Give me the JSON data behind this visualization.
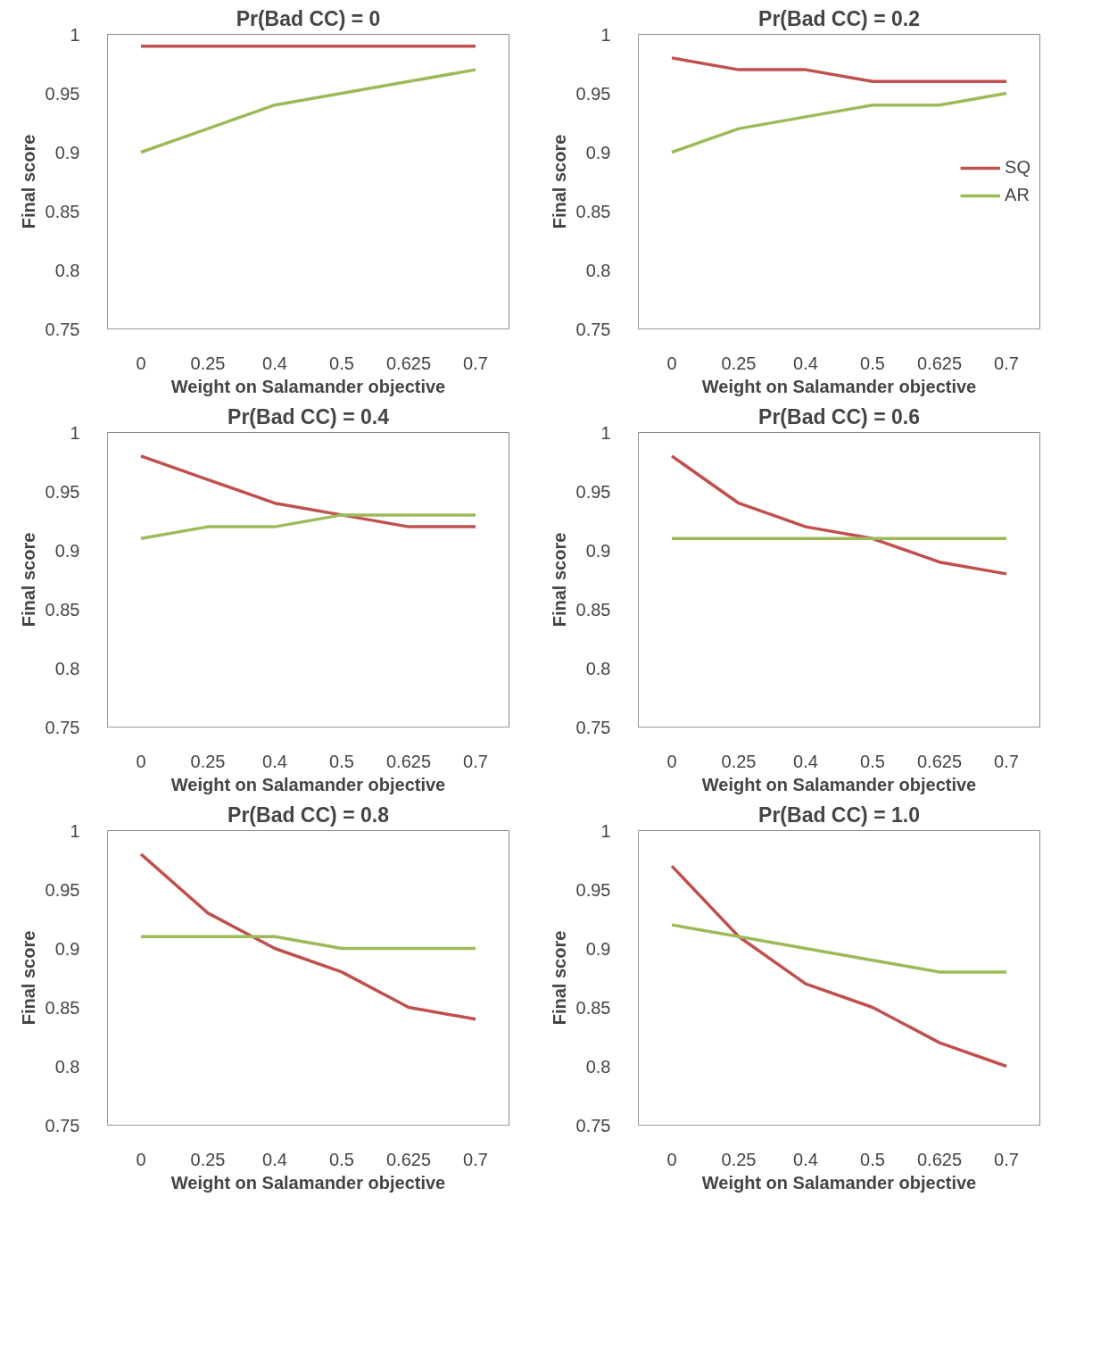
{
  "chart_data": [
    {
      "type": "line",
      "title": "Pr(Bad CC) = 0",
      "xlabel": "Weight on Salamander objective",
      "ylabel": "Final score",
      "categories": [
        "0",
        "0.25",
        "0.4",
        "0.5",
        "0.625",
        "0.7"
      ],
      "ylim": [
        0.75,
        1
      ],
      "yticks": [
        0.75,
        0.8,
        0.85,
        0.9,
        0.95,
        1
      ],
      "grid": false,
      "legend": false,
      "marker": "none",
      "line_style": "solid",
      "series": [
        {
          "color": "#c0504d",
          "values": [
            0.99,
            0.99,
            0.99,
            0.99,
            0.99,
            0.99
          ]
        },
        {
          "color": "#9bbb59",
          "values": [
            0.9,
            0.92,
            0.94,
            0.95,
            0.96,
            0.97
          ]
        }
      ]
    },
    {
      "type": "line",
      "title": "Pr(Bad CC) = 0.2",
      "xlabel": "Weight on Salamander objective",
      "ylabel": "Final score",
      "categories": [
        "0",
        "0.25",
        "0.4",
        "0.5",
        "0.625",
        "0.7"
      ],
      "ylim": [
        0.75,
        1
      ],
      "yticks": [
        0.75,
        0.8,
        0.85,
        0.9,
        0.95,
        1
      ],
      "grid": false,
      "legend": "right",
      "marker": "none",
      "line_style": "solid",
      "series": [
        {
          "name": "SQ",
          "color": "#c0504d",
          "values": [
            0.98,
            0.97,
            0.97,
            0.96,
            0.96,
            0.96
          ]
        },
        {
          "name": "AR",
          "color": "#9bbb59",
          "values": [
            0.9,
            0.92,
            0.93,
            0.94,
            0.94,
            0.95
          ]
        }
      ]
    },
    {
      "type": "line",
      "title": "Pr(Bad CC) = 0.4",
      "xlabel": "Weight on Salamander objective",
      "ylabel": "Final score",
      "categories": [
        "0",
        "0.25",
        "0.4",
        "0.5",
        "0.625",
        "0.7"
      ],
      "ylim": [
        0.75,
        1
      ],
      "yticks": [
        0.75,
        0.8,
        0.85,
        0.9,
        0.95,
        1
      ],
      "grid": false,
      "legend": false,
      "marker": "none",
      "line_style": "solid",
      "series": [
        {
          "color": "#c0504d",
          "values": [
            0.98,
            0.96,
            0.94,
            0.93,
            0.92,
            0.92
          ]
        },
        {
          "color": "#9bbb59",
          "values": [
            0.91,
            0.92,
            0.92,
            0.93,
            0.93,
            0.93
          ]
        }
      ]
    },
    {
      "type": "line",
      "title": "Pr(Bad CC) = 0.6",
      "xlabel": "Weight on Salamander objective",
      "ylabel": "Final score",
      "categories": [
        "0",
        "0.25",
        "0.4",
        "0.5",
        "0.625",
        "0.7"
      ],
      "ylim": [
        0.75,
        1
      ],
      "yticks": [
        0.75,
        0.8,
        0.85,
        0.9,
        0.95,
        1
      ],
      "grid": false,
      "legend": false,
      "marker": "none",
      "line_style": "solid",
      "series": [
        {
          "color": "#c0504d",
          "values": [
            0.98,
            0.94,
            0.92,
            0.91,
            0.89,
            0.88
          ]
        },
        {
          "color": "#9bbb59",
          "values": [
            0.91,
            0.91,
            0.91,
            0.91,
            0.91,
            0.91
          ]
        }
      ]
    },
    {
      "type": "line",
      "title": "Pr(Bad CC) = 0.8",
      "xlabel": "Weight on Salamander objective",
      "ylabel": "Final score",
      "categories": [
        "0",
        "0.25",
        "0.4",
        "0.5",
        "0.625",
        "0.7"
      ],
      "ylim": [
        0.75,
        1
      ],
      "yticks": [
        0.75,
        0.8,
        0.85,
        0.9,
        0.95,
        1
      ],
      "grid": false,
      "legend": false,
      "marker": "none",
      "line_style": "solid",
      "series": [
        {
          "color": "#c0504d",
          "values": [
            0.98,
            0.93,
            0.9,
            0.88,
            0.85,
            0.84
          ]
        },
        {
          "color": "#9bbb59",
          "values": [
            0.91,
            0.91,
            0.91,
            0.9,
            0.9,
            0.9
          ]
        }
      ]
    },
    {
      "type": "line",
      "title": "Pr(Bad CC) = 1.0",
      "xlabel": "Weight on Salamander objective",
      "ylabel": "Final score",
      "categories": [
        "0",
        "0.25",
        "0.4",
        "0.5",
        "0.625",
        "0.7"
      ],
      "ylim": [
        0.75,
        1
      ],
      "yticks": [
        0.75,
        0.8,
        0.85,
        0.9,
        0.95,
        1
      ],
      "grid": false,
      "legend": false,
      "marker": "none",
      "line_style": "solid",
      "series": [
        {
          "color": "#c0504d",
          "values": [
            0.97,
            0.91,
            0.87,
            0.85,
            0.82,
            0.8
          ]
        },
        {
          "color": "#9bbb59",
          "values": [
            0.92,
            0.91,
            0.9,
            0.89,
            0.88,
            0.88
          ]
        }
      ]
    }
  ]
}
